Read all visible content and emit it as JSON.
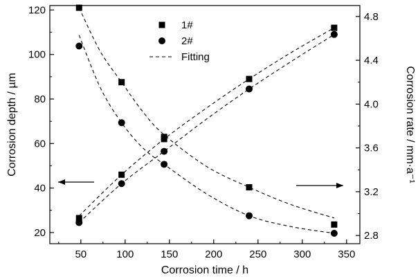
{
  "chart_data": {
    "type": "scatter",
    "xlabel": "Corrosion time / h",
    "ylabel_left": "Corrosion depth / µm",
    "ylabel_right": "Corrosion rate / mm·a⁻¹",
    "xlim": [
      15,
      365
    ],
    "ylim_left": [
      15,
      122
    ],
    "ylim_right": [
      2.725,
      4.9
    ],
    "x_ticks": [
      50,
      100,
      150,
      200,
      250,
      300,
      350
    ],
    "y_left_ticks": [
      20,
      40,
      60,
      80,
      100,
      120
    ],
    "y_right_ticks": [
      2.8,
      3.2,
      3.6,
      4.0,
      4.4,
      4.8
    ],
    "y_right_tick_labels": [
      "2.8",
      "3.2",
      "3.6",
      "4.0",
      "4.4",
      "4.8"
    ],
    "legend_location": "top-center",
    "grid": false,
    "x": [
      48,
      96,
      144,
      240,
      336
    ],
    "series": [
      {
        "name": "1#",
        "marker": "square",
        "axis": "left",
        "values": [
          26.5,
          46.0,
          62.0,
          89.0,
          112.0
        ]
      },
      {
        "name": "2#",
        "marker": "circle",
        "axis": "left",
        "values": [
          24.5,
          42.0,
          56.5,
          84.5,
          109.0
        ]
      },
      {
        "name": "1#",
        "marker": "square",
        "axis": "right",
        "values": [
          4.88,
          4.2,
          3.7,
          3.24,
          2.9
        ]
      },
      {
        "name": "2#",
        "marker": "circle",
        "axis": "right",
        "values": [
          4.53,
          3.83,
          3.45,
          2.98,
          2.82
        ]
      }
    ],
    "fits": [
      {
        "series": "1# depth",
        "axis": "left",
        "x": [
          48,
          96,
          144,
          192,
          240,
          288,
          336
        ],
        "y": [
          27.5,
          46.0,
          62.0,
          76.0,
          89.0,
          101.0,
          112.0
        ]
      },
      {
        "series": "2# depth",
        "axis": "left",
        "x": [
          48,
          96,
          144,
          192,
          240,
          288,
          336
        ],
        "y": [
          24.5,
          42.0,
          56.5,
          71.0,
          84.5,
          97.0,
          109.0
        ]
      },
      {
        "series": "1# rate",
        "axis": "right",
        "x": [
          48,
          72,
          96,
          120,
          144,
          192,
          240,
          288,
          336
        ],
        "y": [
          4.88,
          4.48,
          4.2,
          3.93,
          3.72,
          3.43,
          3.24,
          3.08,
          2.96
        ]
      },
      {
        "series": "2# rate",
        "axis": "right",
        "x": [
          48,
          72,
          96,
          120,
          144,
          192,
          240,
          288,
          336
        ],
        "y": [
          4.63,
          4.15,
          3.83,
          3.6,
          3.45,
          3.18,
          2.98,
          2.88,
          2.82
        ]
      }
    ],
    "legend": [
      {
        "label": "1#",
        "marker": "square"
      },
      {
        "label": "2#",
        "marker": "circle"
      },
      {
        "label": "Fitting",
        "marker": "dashed-line"
      }
    ],
    "annotations": [
      {
        "type": "arrow",
        "direction": "left",
        "points_to": "left-axis"
      },
      {
        "type": "arrow",
        "direction": "right",
        "points_to": "right-axis"
      }
    ]
  }
}
